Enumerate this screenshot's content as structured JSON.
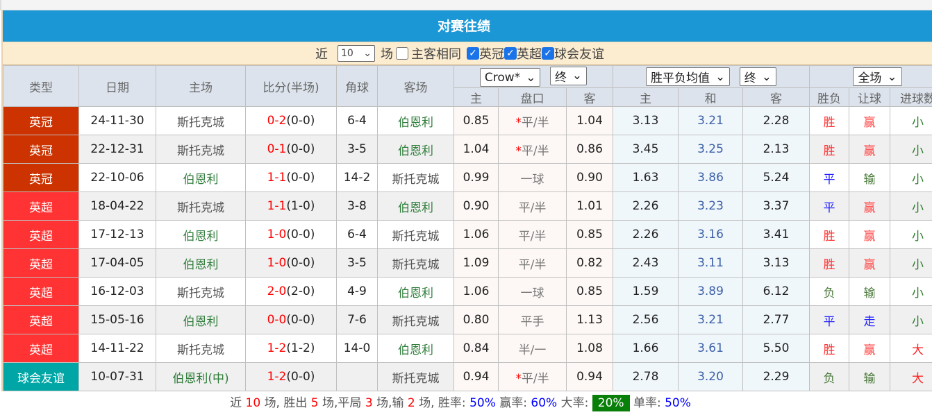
{
  "title": "对赛往绩",
  "filter": {
    "near": "近",
    "count": "10",
    "unit": "场",
    "same_label": "主客相同",
    "same_checked": false,
    "leagues": [
      {
        "label": "英冠",
        "checked": true
      },
      {
        "label": "英超",
        "checked": true
      },
      {
        "label": "球会友谊",
        "checked": true
      }
    ]
  },
  "headers": {
    "type": "类型",
    "date": "日期",
    "home": "主场",
    "score": "比分(半场)",
    "corner": "角球",
    "away": "客场",
    "company": "Crow*",
    "odds_time": "终",
    "avg": "胜平负均值",
    "avg_time": "终",
    "range": "全场",
    "sub": [
      "主",
      "盘口",
      "客",
      "主",
      "和",
      "客",
      "胜负",
      "让球",
      "进球数"
    ]
  },
  "colors": {
    "英冠": "#cc3300",
    "英超": "#ff3333",
    "球会友谊": "#00a6a6",
    "斯托克城": "#555555",
    "伯恩利": "#2f7d3a",
    "胜": "#ff3333",
    "平": "#2222ff",
    "负": "#4a7a3a",
    "赢": "#ff4444",
    "输": "#4a7a3a",
    "走": "#2222ff",
    "小": "#2a7a2a",
    "大": "#ff2222"
  },
  "rows": [
    {
      "type": "英冠",
      "date": "24-11-30",
      "home": "斯托克城",
      "ft": "0-2",
      "ht": "(0-0)",
      "corner": "6-4",
      "away": "伯恩利",
      "h": "0.85",
      "star": true,
      "line": "平/半",
      "a": "1.04",
      "w": "3.13",
      "d": "3.21",
      "l": "2.28",
      "res": "胜",
      "hc": "赢",
      "ou": "小"
    },
    {
      "type": "英冠",
      "date": "22-12-31",
      "home": "斯托克城",
      "ft": "0-1",
      "ht": "(0-0)",
      "corner": "3-5",
      "away": "伯恩利",
      "h": "1.04",
      "star": true,
      "line": "平/半",
      "a": "0.86",
      "w": "3.45",
      "d": "3.25",
      "l": "2.13",
      "res": "胜",
      "hc": "赢",
      "ou": "小"
    },
    {
      "type": "英冠",
      "date": "22-10-06",
      "home": "伯恩利",
      "ft": "1-1",
      "ht": "(0-0)",
      "corner": "14-2",
      "away": "斯托克城",
      "h": "0.99",
      "star": false,
      "line": "一球",
      "a": "0.90",
      "w": "1.63",
      "d": "3.86",
      "l": "5.24",
      "res": "平",
      "hc": "输",
      "ou": "小"
    },
    {
      "type": "英超",
      "date": "18-04-22",
      "home": "斯托克城",
      "ft": "1-1",
      "ht": "(1-0)",
      "corner": "3-8",
      "away": "伯恩利",
      "h": "0.90",
      "star": false,
      "line": "平/半",
      "a": "1.01",
      "w": "2.26",
      "d": "3.23",
      "l": "3.37",
      "res": "平",
      "hc": "赢",
      "ou": "小"
    },
    {
      "type": "英超",
      "date": "17-12-13",
      "home": "伯恩利",
      "ft": "1-0",
      "ht": "(0-0)",
      "corner": "6-4",
      "away": "斯托克城",
      "h": "1.06",
      "star": false,
      "line": "平/半",
      "a": "0.85",
      "w": "2.26",
      "d": "3.16",
      "l": "3.41",
      "res": "胜",
      "hc": "赢",
      "ou": "小"
    },
    {
      "type": "英超",
      "date": "17-04-05",
      "home": "伯恩利",
      "ft": "1-0",
      "ht": "(0-0)",
      "corner": "3-5",
      "away": "斯托克城",
      "h": "1.09",
      "star": false,
      "line": "平/半",
      "a": "0.82",
      "w": "2.43",
      "d": "3.11",
      "l": "3.13",
      "res": "胜",
      "hc": "赢",
      "ou": "小"
    },
    {
      "type": "英超",
      "date": "16-12-03",
      "home": "斯托克城",
      "ft": "2-0",
      "ht": "(2-0)",
      "corner": "4-9",
      "away": "伯恩利",
      "h": "1.06",
      "star": false,
      "line": "一球",
      "a": "0.85",
      "w": "1.59",
      "d": "3.89",
      "l": "6.12",
      "res": "负",
      "hc": "输",
      "ou": "小"
    },
    {
      "type": "英超",
      "date": "15-05-16",
      "home": "伯恩利",
      "ft": "0-0",
      "ht": "(0-0)",
      "corner": "7-6",
      "away": "斯托克城",
      "h": "0.80",
      "star": false,
      "line": "平手",
      "a": "1.13",
      "w": "2.56",
      "d": "3.21",
      "l": "2.77",
      "res": "平",
      "hc": "走",
      "ou": "小"
    },
    {
      "type": "英超",
      "date": "14-11-22",
      "home": "斯托克城",
      "ft": "1-2",
      "ht": "(1-2)",
      "corner": "14-0",
      "away": "伯恩利",
      "h": "0.84",
      "star": false,
      "line": "半/一",
      "a": "1.08",
      "w": "1.66",
      "d": "3.61",
      "l": "5.50",
      "res": "胜",
      "hc": "赢",
      "ou": "大"
    },
    {
      "type": "球会友谊",
      "date": "10-07-31",
      "home": "伯恩利(中)",
      "ft": "1-2",
      "ht": "(0-0)",
      "corner": "",
      "away": "斯托克城",
      "h": "0.94",
      "star": true,
      "line": "平/半",
      "a": "0.94",
      "w": "2.78",
      "d": "3.20",
      "l": "2.29",
      "res": "负",
      "hc": "输",
      "ou": "大"
    }
  ],
  "summary": {
    "t1": "近",
    "n": "10",
    "t2": "场, 胜出",
    "win": "5",
    "t3": "场,平局",
    "draw": "3",
    "t4": "场,输",
    "loss": "2",
    "t5": "场, 胜率:",
    "win_rate": "50%",
    "t6": "赢率:",
    "hc_rate": "60%",
    "t7": "大率:",
    "over_rate": "20%",
    "t8": "单率:",
    "odd_rate": "50%"
  }
}
